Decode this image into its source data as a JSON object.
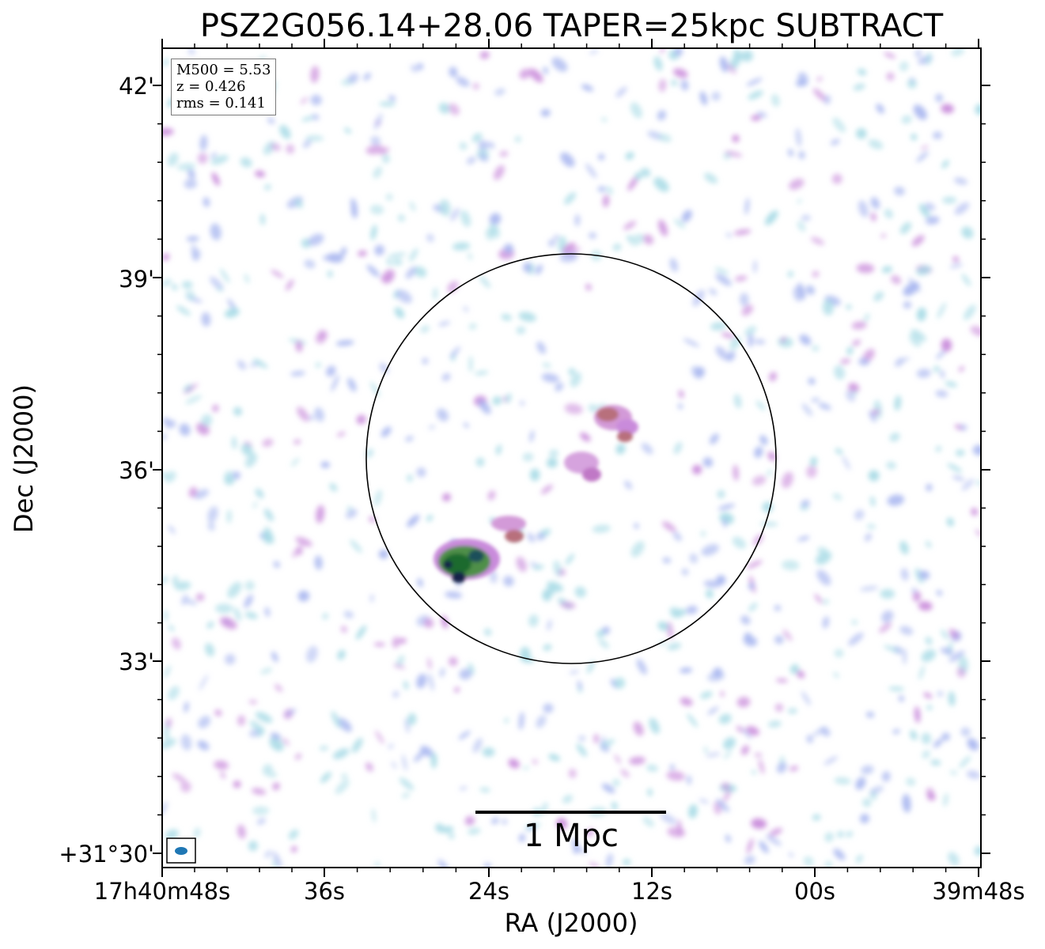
{
  "title": "PSZ2G056.14+28.06 TAPER=25kpc SUBTRACT",
  "info": {
    "m500": "M500 = 5.53",
    "z": "z = 0.426",
    "rms": "rms = 0.141"
  },
  "axes": {
    "x_title": "RA (J2000)",
    "y_title": "Dec (J2000)",
    "x_ticks": [
      "17h40m48s",
      "36s",
      "24s",
      "12s",
      "00s",
      "39m48s"
    ],
    "y_ticks": [
      "42'",
      "39'",
      "36'",
      "33'",
      "+31°30'"
    ]
  },
  "scalebar": {
    "label": "1 Mpc"
  },
  "colors": {
    "faint_emission": "#a8dbe6",
    "low_emission": "#a9b7f0",
    "mid_emission": "#c98bdb",
    "high_emission": "#b86a7a",
    "peak_emission": "#1d6b2e",
    "beam": "#1f77b4"
  }
}
